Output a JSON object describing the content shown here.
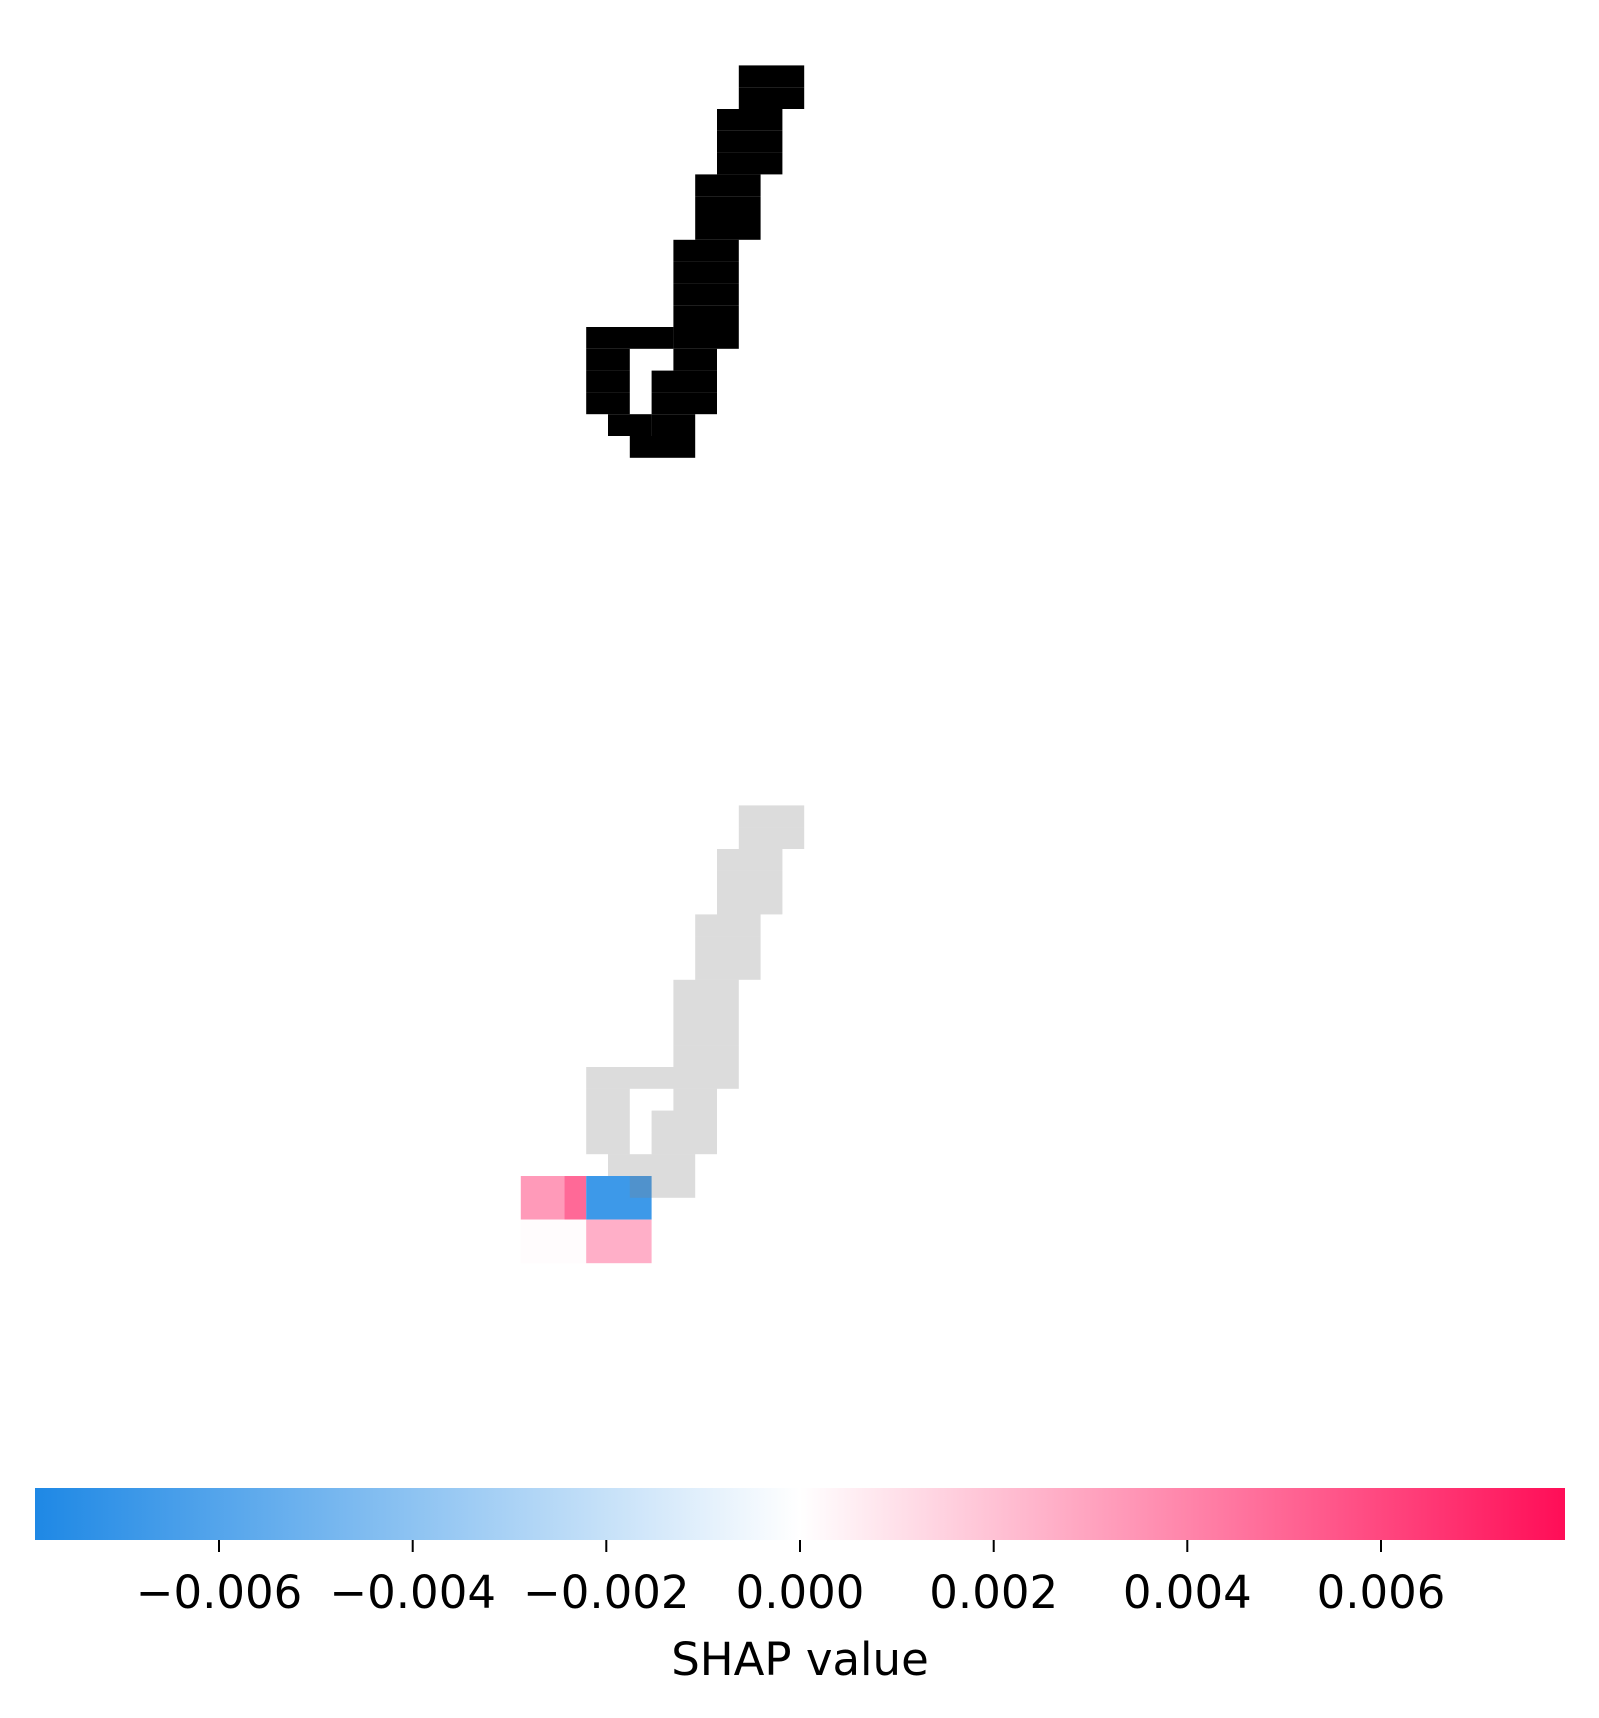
{
  "chart_data": {
    "type": "heatmap",
    "title": "",
    "panels": [
      {
        "name": "input image",
        "grid_size": 28,
        "ink_rows": [
          [
            3,
            16,
            18
          ],
          [
            4,
            16,
            18
          ],
          [
            5,
            15,
            17
          ],
          [
            6,
            15,
            17
          ],
          [
            7,
            15,
            17
          ],
          [
            8,
            14,
            16
          ],
          [
            9,
            14,
            16
          ],
          [
            10,
            14,
            16
          ],
          [
            11,
            13,
            15
          ],
          [
            12,
            13,
            15
          ],
          [
            13,
            13,
            15
          ],
          [
            14,
            13,
            15
          ],
          [
            15,
            9,
            12
          ],
          [
            15,
            13,
            15
          ],
          [
            16,
            9,
            10
          ],
          [
            16,
            13,
            14
          ],
          [
            17,
            9,
            10
          ],
          [
            17,
            12,
            14
          ],
          [
            18,
            9,
            10
          ],
          [
            18,
            12,
            14
          ],
          [
            19,
            10,
            11
          ],
          [
            19,
            12,
            13
          ],
          [
            20,
            11,
            13
          ]
        ]
      },
      {
        "name": "SHAP overlay",
        "cells": [
          {
            "rows": [
              20,
              21
            ],
            "cols": [
              6,
              7
            ],
            "value": 0.0033
          },
          {
            "rows": [
              20,
              21
            ],
            "cols": [
              8,
              8
            ],
            "value": 0.0049
          },
          {
            "rows": [
              20,
              21
            ],
            "cols": [
              9,
              11
            ],
            "value": -0.0068
          },
          {
            "rows": [
              22,
              23
            ],
            "cols": [
              6,
              8
            ],
            "value": 0.0001
          },
          {
            "rows": [
              22,
              23
            ],
            "cols": [
              9,
              11
            ],
            "value": 0.0026
          }
        ]
      }
    ],
    "colorbar": {
      "label": "SHAP value",
      "range": [
        -0.0079,
        0.0079
      ],
      "ticks": [
        -0.006,
        -0.004,
        -0.002,
        0.0,
        0.002,
        0.004,
        0.006
      ],
      "tick_labels": [
        "−0.006",
        "−0.004",
        "−0.002",
        "0.000",
        "0.002",
        "0.004",
        "0.006"
      ],
      "color_negative": "#1e88e5",
      "color_zero": "#ffffff",
      "color_positive": "#ff0d57"
    }
  }
}
